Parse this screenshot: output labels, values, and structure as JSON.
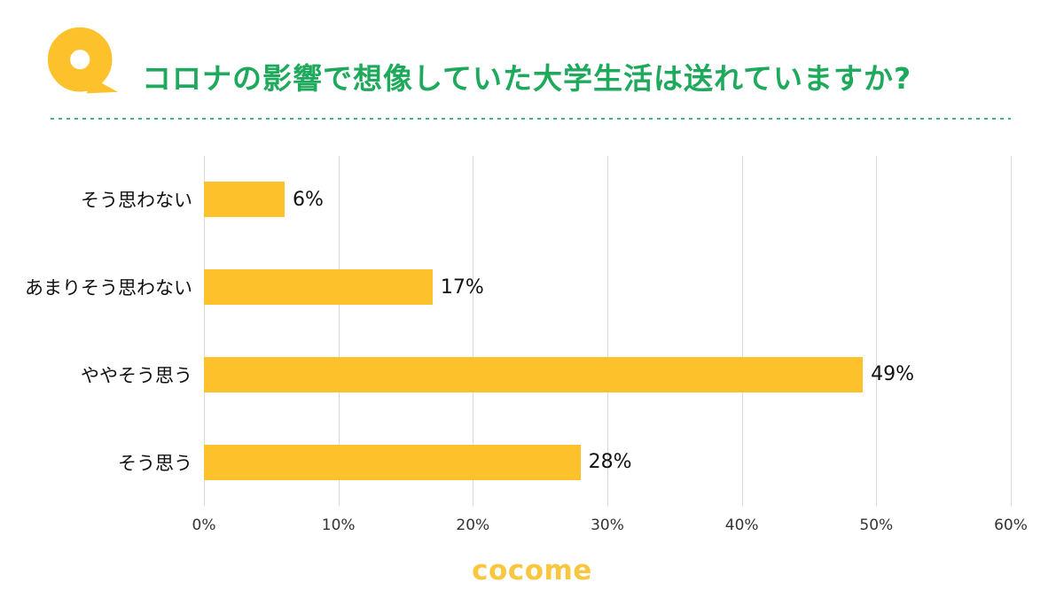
{
  "header": {
    "title": "コロナの影響で想像していた大学生活は送れていますか?"
  },
  "colors": {
    "title_green": "#1EA95C",
    "divider_green": "#43B57B",
    "bar_yellow": "#FDC22B",
    "logo_yellow": "#F9C63F",
    "gridline_gray": "#D9D9D9"
  },
  "chart_data": {
    "type": "bar",
    "orientation": "horizontal",
    "title": "コロナの影響で想像していた大学生活は送れていますか?",
    "categories": [
      "そう思わない",
      "あまりそう思わない",
      "ややそう思う",
      "そう思う"
    ],
    "values": [
      6,
      17,
      49,
      28
    ],
    "value_labels": [
      "6%",
      "17%",
      "49%",
      "28%"
    ],
    "x_ticks": [
      "0%",
      "10%",
      "20%",
      "30%",
      "40%",
      "50%",
      "60%"
    ],
    "xlim": [
      0,
      60
    ],
    "grid": true,
    "legend": false,
    "xlabel": "",
    "ylabel": ""
  },
  "footer": {
    "logo_text": "cocome"
  }
}
